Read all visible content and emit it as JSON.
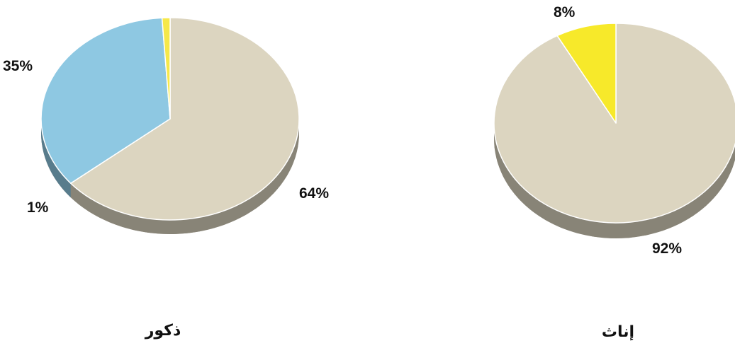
{
  "chart_data": [
    {
      "type": "pie",
      "title": "ذكور",
      "categories": [
        "",
        "",
        ""
      ],
      "values": [
        64,
        35,
        1
      ],
      "labels": [
        "64%",
        "35%",
        "1%"
      ],
      "colors": [
        "#dcd5c0",
        "#8ec8e2",
        "#f6e84a"
      ],
      "start_angle_deg": 0,
      "direction": "clockwise"
    },
    {
      "type": "pie",
      "title": "إناث",
      "categories": [
        "",
        ""
      ],
      "values": [
        92,
        8
      ],
      "labels": [
        "92%",
        "8%"
      ],
      "colors": [
        "#dcd5c0",
        "#f7e92a"
      ],
      "start_angle_deg": 0,
      "direction": "clockwise"
    }
  ]
}
